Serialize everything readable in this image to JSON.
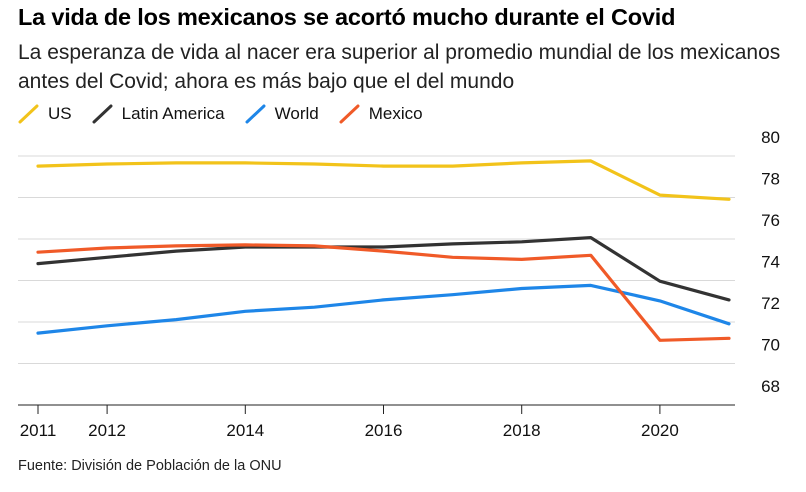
{
  "title": "La vida de los mexicanos se acortó mucho durante el Covid",
  "subtitle": "La esperanza de vida al nacer era superior al promedio mundial de los mexicanos antes del Covid; ahora es más bajo que el del mundo",
  "source": "Fuente: División de Población de la ONU",
  "chart_data": {
    "type": "line",
    "title": "La vida de los mexicanos se acortó mucho durante el Covid",
    "xlabel": "",
    "ylabel": "",
    "x": [
      2011,
      2012,
      2013,
      2014,
      2015,
      2016,
      2017,
      2018,
      2019,
      2020,
      2021
    ],
    "xticks": [
      "2011",
      "2012",
      "2014",
      "2016",
      "2018",
      "2020"
    ],
    "xtick_values": [
      2011,
      2012,
      2014,
      2016,
      2018,
      2020
    ],
    "yticks": [
      "68",
      "70",
      "72",
      "74",
      "76",
      "78",
      "80"
    ],
    "ytick_values": [
      68,
      70,
      72,
      74,
      76,
      78,
      80
    ],
    "ylim": [
      68,
      80
    ],
    "xlim": [
      2011,
      2021
    ],
    "grid": true,
    "legend_position": "top-left",
    "series": [
      {
        "name": "US",
        "color": "#F2C31A",
        "values": [
          78.6,
          78.7,
          78.75,
          78.75,
          78.7,
          78.6,
          78.6,
          78.75,
          78.85,
          77.2,
          77.0
        ]
      },
      {
        "name": "Latin America",
        "color": "#333333",
        "values": [
          73.9,
          74.2,
          74.5,
          74.7,
          74.7,
          74.7,
          74.85,
          74.95,
          75.15,
          73.05,
          72.15
        ]
      },
      {
        "name": "World",
        "color": "#1E86E8",
        "values": [
          70.55,
          70.9,
          71.2,
          71.6,
          71.8,
          72.15,
          72.4,
          72.7,
          72.85,
          72.1,
          71.0
        ]
      },
      {
        "name": "Mexico",
        "color": "#F05A28",
        "values": [
          74.45,
          74.65,
          74.75,
          74.8,
          74.75,
          74.5,
          74.2,
          74.1,
          74.3,
          70.2,
          70.3
        ]
      }
    ]
  }
}
